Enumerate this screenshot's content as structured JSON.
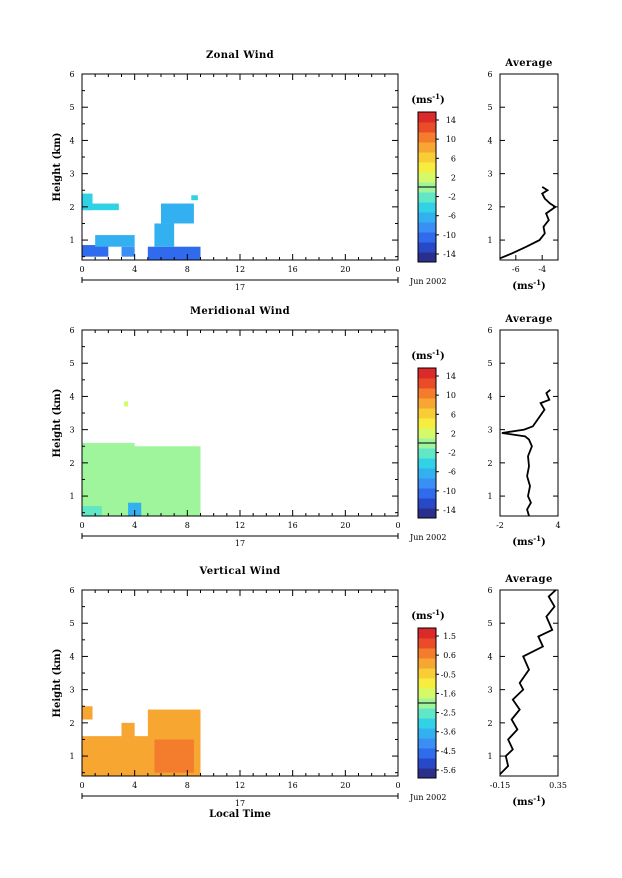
{
  "colors": {
    "scale": [
      "#2b2f8c",
      "#2948c7",
      "#2f6bec",
      "#3a8ff5",
      "#33b0f0",
      "#32d2e6",
      "#62e7c6",
      "#9ef59b",
      "#d4f969",
      "#f6ee3f",
      "#f9cd35",
      "#f7a632",
      "#f37d2c",
      "#ea4c2a",
      "#dc2a2a"
    ]
  },
  "chart_data": [
    {
      "type": "heatmap",
      "title": "Zonal Wind",
      "ylabel": "Height (km)",
      "xlabel": "",
      "xlim": [
        0,
        24
      ],
      "ylim": [
        0.4,
        6
      ],
      "xticks": [
        "0",
        "4",
        "8",
        "12",
        "16",
        "20",
        "0"
      ],
      "yticks": [
        "1",
        "2",
        "3",
        "4",
        "5",
        "6"
      ],
      "date_day": "17",
      "date_label": "Jun 2002",
      "colorbar": {
        "unit": "(ms",
        "unit_exp": "-1",
        "unit_close": ")",
        "ticks": [
          "14",
          "10",
          "6",
          "2",
          "-2",
          "-6",
          "-10",
          "-14"
        ],
        "range": [
          -16,
          16
        ]
      },
      "regions": [
        {
          "x0": 0.0,
          "x1": 0.8,
          "y0": 1.9,
          "y1": 2.4,
          "value": -5
        },
        {
          "x0": 0.2,
          "x1": 2.8,
          "y0": 1.9,
          "y1": 2.1,
          "value": -4
        },
        {
          "x0": 0.0,
          "x1": 2.0,
          "y0": 0.5,
          "y1": 0.85,
          "value": -10
        },
        {
          "x0": 1.0,
          "x1": 4.0,
          "y0": 0.8,
          "y1": 1.15,
          "value": -6
        },
        {
          "x0": 3.0,
          "x1": 4.0,
          "y0": 0.5,
          "y1": 0.8,
          "value": -9
        },
        {
          "x0": 5.0,
          "x1": 9.0,
          "y0": 0.4,
          "y1": 0.8,
          "value": -11
        },
        {
          "x0": 5.5,
          "x1": 7.0,
          "y0": 0.8,
          "y1": 1.5,
          "value": -6
        },
        {
          "x0": 6.0,
          "x1": 8.5,
          "y0": 1.5,
          "y1": 2.1,
          "value": -6
        },
        {
          "x0": 8.3,
          "x1": 8.8,
          "y0": 2.2,
          "y1": 2.35,
          "value": -4
        }
      ],
      "average": {
        "title": "Average",
        "xlabel": "(ms",
        "xlabel_exp": "-1",
        "xlabel_close": ")",
        "xlim": [
          -7.2,
          -2.8
        ],
        "xticks": [
          -6,
          -4
        ],
        "profile": [
          [
            -7.2,
            0.45
          ],
          [
            -6.3,
            0.6
          ],
          [
            -5.2,
            0.8
          ],
          [
            -4.2,
            1.0
          ],
          [
            -3.8,
            1.2
          ],
          [
            -3.9,
            1.4
          ],
          [
            -3.5,
            1.6
          ],
          [
            -3.7,
            1.8
          ],
          [
            -3.0,
            2.0
          ],
          [
            -3.4,
            2.1
          ],
          [
            -3.8,
            2.25
          ],
          [
            -4.0,
            2.4
          ],
          [
            -3.6,
            2.5
          ],
          [
            -4.0,
            2.6
          ]
        ]
      }
    },
    {
      "type": "heatmap",
      "title": "Meridional Wind",
      "ylabel": "Height (km)",
      "xlabel": "",
      "xlim": [
        0,
        24
      ],
      "ylim": [
        0.4,
        6
      ],
      "xticks": [
        "0",
        "4",
        "8",
        "12",
        "16",
        "20",
        "0"
      ],
      "yticks": [
        "1",
        "2",
        "3",
        "4",
        "5",
        "6"
      ],
      "date_day": "17",
      "date_label": "Jun 2002",
      "colorbar": {
        "unit": "(ms",
        "unit_exp": "-1",
        "unit_close": ")",
        "ticks": [
          "14",
          "10",
          "6",
          "2",
          "-2",
          "-6",
          "-10",
          "-14"
        ],
        "range": [
          -16,
          16
        ]
      },
      "regions": [
        {
          "x0": 0.0,
          "x1": 9.0,
          "y0": 0.4,
          "y1": 2.5,
          "value": 1
        },
        {
          "x0": 0.0,
          "x1": 4.0,
          "y0": 2.2,
          "y1": 2.6,
          "value": 0
        },
        {
          "x0": 6.5,
          "x1": 9.0,
          "y0": 1.0,
          "y1": 2.2,
          "value": -1
        },
        {
          "x0": 3.5,
          "x1": 4.5,
          "y0": 0.4,
          "y1": 0.8,
          "value": -6
        },
        {
          "x0": 0.0,
          "x1": 1.5,
          "y0": 0.4,
          "y1": 0.7,
          "value": -3
        },
        {
          "x0": 3.2,
          "x1": 3.5,
          "y0": 3.7,
          "y1": 3.85,
          "value": 2
        }
      ],
      "average": {
        "title": "Average",
        "xlabel": "(ms",
        "xlabel_exp": "-1",
        "xlabel_close": ")",
        "xlim": [
          -2,
          4
        ],
        "xticks": [
          -2,
          4
        ],
        "profile": [
          [
            1.0,
            0.4
          ],
          [
            0.8,
            0.6
          ],
          [
            1.2,
            0.8
          ],
          [
            0.9,
            1.0
          ],
          [
            1.1,
            1.3
          ],
          [
            0.8,
            1.6
          ],
          [
            1.0,
            1.9
          ],
          [
            0.9,
            2.2
          ],
          [
            1.3,
            2.5
          ],
          [
            1.0,
            2.7
          ],
          [
            0.6,
            2.8
          ],
          [
            -1.8,
            2.9
          ],
          [
            0.5,
            3.0
          ],
          [
            1.4,
            3.1
          ],
          [
            2.6,
            3.6
          ],
          [
            2.2,
            3.8
          ],
          [
            3.1,
            3.9
          ],
          [
            2.8,
            4.1
          ],
          [
            3.2,
            4.2
          ]
        ]
      }
    },
    {
      "type": "heatmap",
      "title": "Vertical Wind",
      "ylabel": "Height (km)",
      "xlabel": "Local Time",
      "xlim": [
        0,
        24
      ],
      "ylim": [
        0.4,
        6
      ],
      "xticks": [
        "0",
        "4",
        "8",
        "12",
        "16",
        "20",
        "0"
      ],
      "yticks": [
        "1",
        "2",
        "3",
        "4",
        "5",
        "6"
      ],
      "date_day": "17",
      "date_label": "Jun 2002",
      "colorbar": {
        "unit": "(ms",
        "unit_exp": "-1",
        "unit_close": ")",
        "ticks": [
          "1.5",
          "0.6",
          "-0.5",
          "-1.6",
          "-2.5",
          "-3.6",
          "-4.5",
          "-5.6"
        ],
        "range": [
          -6,
          2
        ]
      },
      "regions": [
        {
          "x0": 0.0,
          "x1": 9.0,
          "y0": 0.4,
          "y1": 1.6,
          "value": 0.2
        },
        {
          "x0": 5.0,
          "x1": 9.0,
          "y0": 1.2,
          "y1": 2.4,
          "value": 0.2
        },
        {
          "x0": 0.0,
          "x1": 0.8,
          "y0": 2.1,
          "y1": 2.5,
          "value": 0.2
        },
        {
          "x0": 5.5,
          "x1": 8.5,
          "y0": 0.5,
          "y1": 1.5,
          "value": 0.9
        },
        {
          "x0": 3.0,
          "x1": 4.0,
          "y0": 1.5,
          "y1": 2.0,
          "value": 0.2
        }
      ],
      "average": {
        "title": "Average",
        "xlabel": "(ms",
        "xlabel_exp": "-1",
        "xlabel_close": ")",
        "xlim": [
          -0.15,
          0.35
        ],
        "xticks": [
          "-0.15",
          "0.35"
        ],
        "profile": [
          [
            -0.15,
            0.45
          ],
          [
            -0.08,
            0.7
          ],
          [
            -0.1,
            1.0
          ],
          [
            -0.04,
            1.2
          ],
          [
            -0.08,
            1.5
          ],
          [
            0.0,
            1.8
          ],
          [
            -0.05,
            2.1
          ],
          [
            0.02,
            2.4
          ],
          [
            -0.04,
            2.7
          ],
          [
            0.05,
            3.0
          ],
          [
            0.02,
            3.2
          ],
          [
            0.1,
            3.6
          ],
          [
            0.05,
            4.0
          ],
          [
            0.22,
            4.3
          ],
          [
            0.18,
            4.6
          ],
          [
            0.3,
            4.8
          ],
          [
            0.25,
            5.2
          ],
          [
            0.32,
            5.5
          ],
          [
            0.27,
            5.8
          ],
          [
            0.33,
            6.0
          ]
        ]
      }
    }
  ]
}
